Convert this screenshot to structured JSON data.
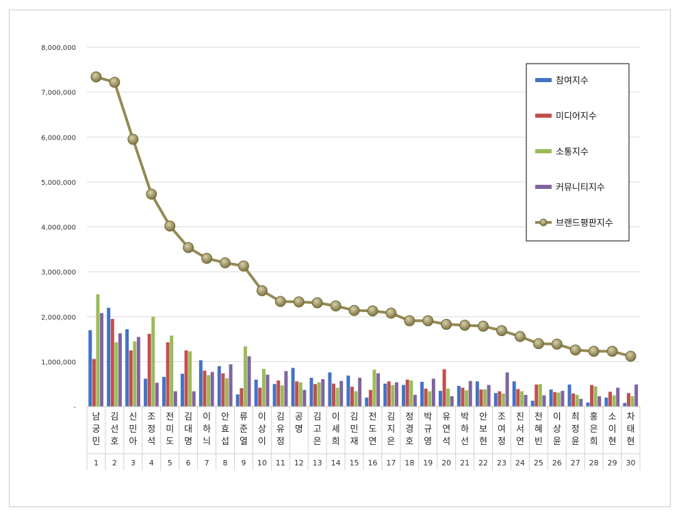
{
  "chart_data": {
    "type": "bar",
    "title": "",
    "xlabel": "",
    "ylabel": "",
    "ylim": [
      0,
      8000000
    ],
    "yticks": [
      "-",
      "1,000,000",
      "2,000,000",
      "3,000,000",
      "4,000,000",
      "5,000,000",
      "6,000,000",
      "7,000,000",
      "8,000,000"
    ],
    "grid": true,
    "legend_position": "right",
    "categories": [
      "남궁민",
      "김선호",
      "신민아",
      "조정석",
      "전미도",
      "김대명",
      "이하늬",
      "안효섭",
      "류준열",
      "이상이",
      "김유정",
      "공명",
      "김고은",
      "이세희",
      "김민재",
      "전도연",
      "김지은",
      "정경호",
      "박규영",
      "유연석",
      "박하선",
      "안보현",
      "조여정",
      "진서연",
      "전혜빈",
      "이상윤",
      "최정윤",
      "홍은희",
      "소이현",
      "차태현"
    ],
    "ranks": [
      "1",
      "2",
      "3",
      "4",
      "5",
      "6",
      "7",
      "8",
      "9",
      "10",
      "11",
      "12",
      "13",
      "14",
      "15",
      "16",
      "17",
      "18",
      "19",
      "20",
      "21",
      "22",
      "23",
      "24",
      "25",
      "26",
      "27",
      "28",
      "29",
      "30"
    ],
    "series": [
      {
        "name": "참여지수",
        "kind": "bar",
        "color": "#4472c4",
        "values": [
          1700000,
          2200000,
          1720000,
          620000,
          660000,
          730000,
          1030000,
          900000,
          270000,
          600000,
          500000,
          860000,
          640000,
          760000,
          690000,
          200000,
          510000,
          480000,
          550000,
          350000,
          460000,
          560000,
          300000,
          560000,
          130000,
          380000,
          490000,
          90000,
          200000,
          80000
        ]
      },
      {
        "name": "미디어지수",
        "kind": "bar",
        "color": "#c0504d",
        "values": [
          1060000,
          1950000,
          1250000,
          1620000,
          1430000,
          1250000,
          800000,
          740000,
          410000,
          420000,
          580000,
          560000,
          500000,
          510000,
          440000,
          370000,
          560000,
          600000,
          400000,
          830000,
          420000,
          380000,
          340000,
          390000,
          490000,
          320000,
          290000,
          480000,
          330000,
          300000
        ]
      },
      {
        "name": "소통지수",
        "kind": "bar",
        "color": "#9bbb59",
        "values": [
          2500000,
          1430000,
          1450000,
          2000000,
          1580000,
          1230000,
          700000,
          630000,
          1340000,
          840000,
          470000,
          540000,
          540000,
          420000,
          340000,
          820000,
          480000,
          580000,
          340000,
          400000,
          360000,
          380000,
          290000,
          340000,
          500000,
          310000,
          260000,
          450000,
          250000,
          230000
        ]
      },
      {
        "name": "커뮤니티지수",
        "kind": "bar",
        "color": "#8064a2",
        "values": [
          2080000,
          1630000,
          1550000,
          530000,
          340000,
          340000,
          770000,
          940000,
          1120000,
          710000,
          790000,
          370000,
          610000,
          570000,
          640000,
          740000,
          540000,
          260000,
          620000,
          230000,
          570000,
          480000,
          760000,
          260000,
          250000,
          350000,
          170000,
          230000,
          420000,
          490000
        ]
      },
      {
        "name": "브랜드평판지수",
        "kind": "line",
        "color": "#948a54",
        "values": [
          7340000,
          7220000,
          5950000,
          4730000,
          4020000,
          3540000,
          3300000,
          3200000,
          3130000,
          2580000,
          2340000,
          2330000,
          2310000,
          2240000,
          2140000,
          2130000,
          2080000,
          1910000,
          1910000,
          1830000,
          1810000,
          1790000,
          1690000,
          1560000,
          1400000,
          1390000,
          1260000,
          1230000,
          1230000,
          1120000
        ]
      }
    ]
  }
}
